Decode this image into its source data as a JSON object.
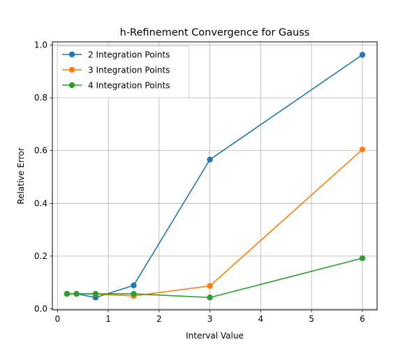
{
  "chart_data": {
    "type": "line",
    "title": "h-Refinement Convergence for Gauss",
    "xlabel": "Interval Value",
    "ylabel": "Relative Error",
    "xlim": [
      -0.1,
      6.29
    ],
    "ylim": [
      -0.004,
      1.012
    ],
    "xticks": [
      0,
      1,
      2,
      3,
      4,
      5,
      6
    ],
    "yticks": [
      0.0,
      0.2,
      0.4,
      0.6,
      0.8,
      1.0
    ],
    "xtick_labels": [
      "0",
      "1",
      "2",
      "3",
      "4",
      "5",
      "6"
    ],
    "ytick_labels": [
      "0.0",
      "0.2",
      "0.4",
      "0.6",
      "0.8",
      "1.0"
    ],
    "grid": true,
    "legend_position": "top-left",
    "x": [
      0.1875,
      0.375,
      0.75,
      1.5,
      3.0,
      6.0
    ],
    "series": [
      {
        "name": "2 Integration Points",
        "color": "#1f77b4",
        "values": [
          0.057,
          0.057,
          0.043,
          0.089,
          0.566,
          0.963
        ]
      },
      {
        "name": "3 Integration Points",
        "color": "#ff7f0e",
        "values": [
          0.057,
          0.057,
          0.056,
          0.049,
          0.087,
          0.604
        ]
      },
      {
        "name": "4 Integration Points",
        "color": "#2ca02c",
        "values": [
          0.057,
          0.057,
          0.057,
          0.057,
          0.043,
          0.192
        ]
      }
    ]
  }
}
